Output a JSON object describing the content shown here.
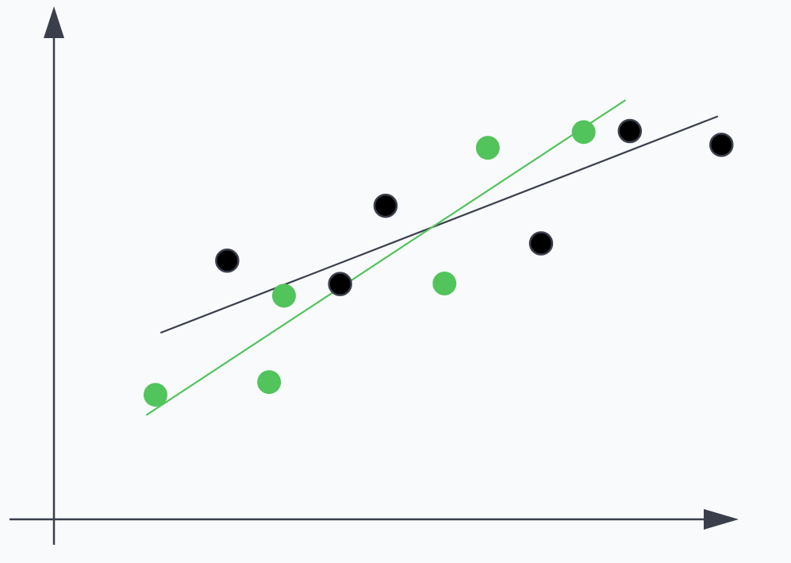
{
  "chart_data": {
    "type": "scatter",
    "title": "",
    "xlabel": "",
    "ylabel": "",
    "xlim": [
      0,
      10
    ],
    "ylim": [
      0,
      10
    ],
    "grid": false,
    "legend": "none",
    "colors": {
      "background": "#f8fafc",
      "axis": "#3a3f4b",
      "series_a_fill": "#000000",
      "series_a_stroke": "#3a3f4b",
      "series_a_line": "#3a3f4b",
      "series_b_fill": "#52c45c",
      "series_b_line": "#52c45c"
    },
    "series": [
      {
        "id": "series-a",
        "marker": "circle-outlined",
        "points": [
          {
            "x": 2.44,
            "y": 5.09
          },
          {
            "x": 4.03,
            "y": 4.63
          },
          {
            "x": 4.67,
            "y": 6.17
          },
          {
            "x": 6.86,
            "y": 5.43
          },
          {
            "x": 8.11,
            "y": 7.64
          },
          {
            "x": 9.4,
            "y": 7.37
          }
        ],
        "trendline": {
          "from": {
            "x": 1.5,
            "y": 3.67
          },
          "to": {
            "x": 9.35,
            "y": 7.93
          }
        }
      },
      {
        "id": "series-b",
        "marker": "circle",
        "points": [
          {
            "x": 1.43,
            "y": 2.45
          },
          {
            "x": 3.03,
            "y": 2.7
          },
          {
            "x": 3.24,
            "y": 4.4
          },
          {
            "x": 5.5,
            "y": 4.64
          },
          {
            "x": 6.11,
            "y": 7.31
          },
          {
            "x": 7.46,
            "y": 7.62
          }
        ],
        "trendline": {
          "from": {
            "x": 1.3,
            "y": 2.05
          },
          "to": {
            "x": 8.05,
            "y": 8.25
          }
        }
      }
    ]
  }
}
